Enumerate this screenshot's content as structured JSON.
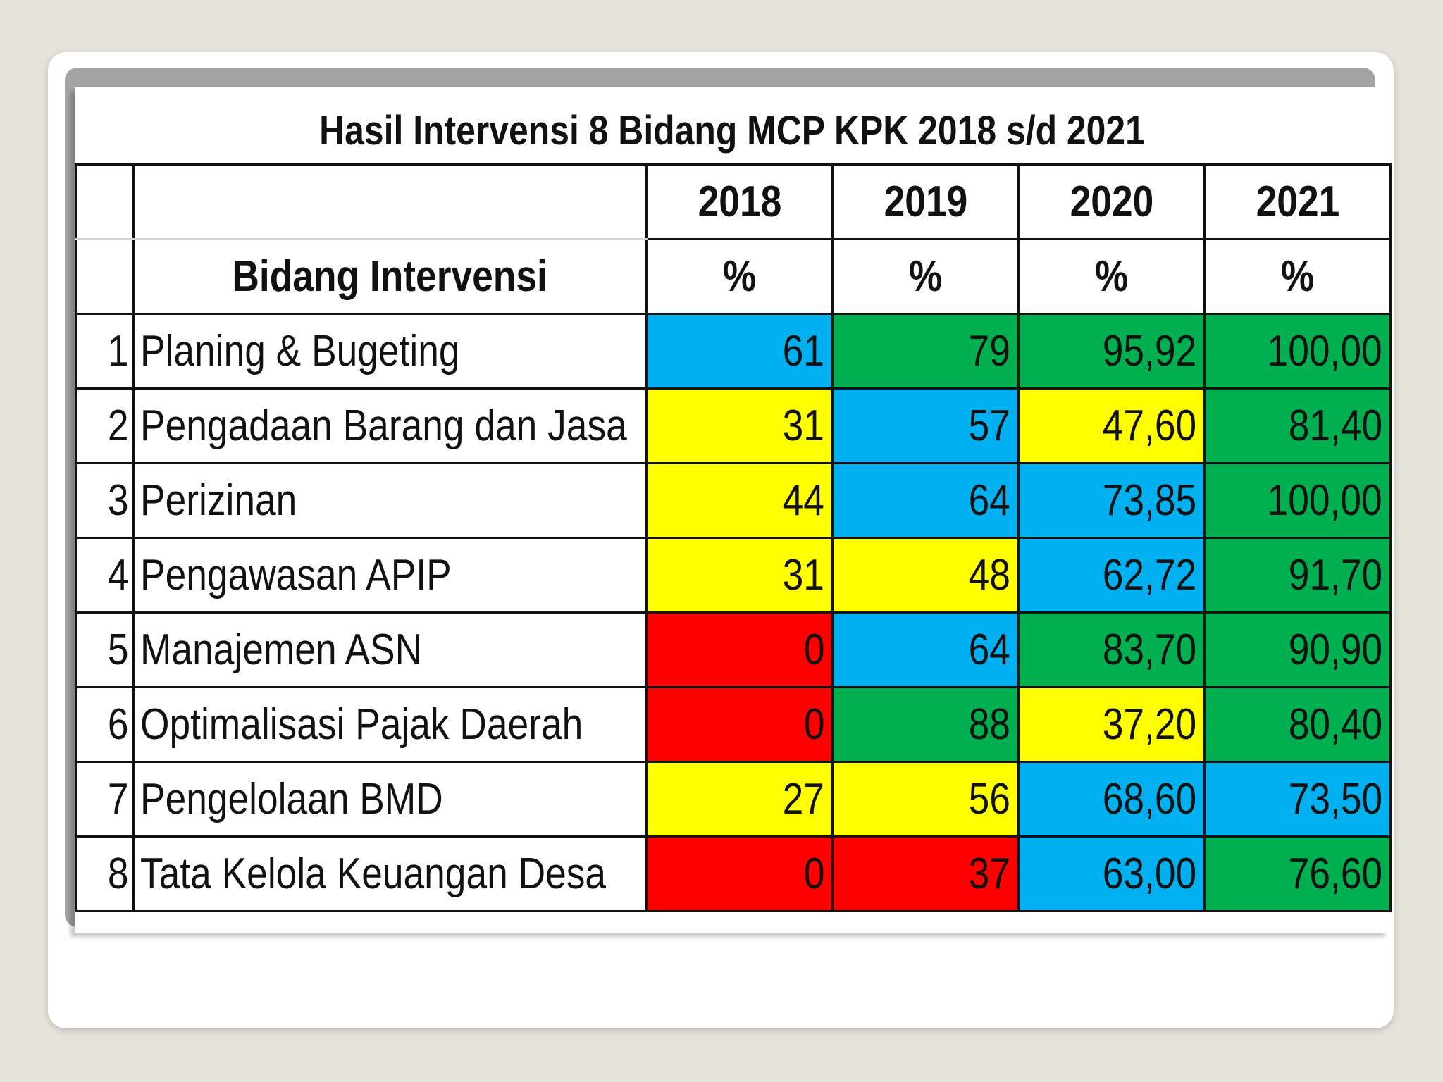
{
  "title": "Hasil Intervensi 8 Bidang MCP KPK 2018 s/d 2021",
  "header": {
    "field_label": "Bidang Intervensi",
    "years": [
      "2018",
      "2019",
      "2020",
      "2021"
    ],
    "unit": "%"
  },
  "colors": {
    "blue": "#00b0f0",
    "green": "#00b050",
    "yellow": "#ffff00",
    "red": "#ff0000"
  },
  "rows": [
    {
      "no": "1",
      "name": "Planing & Bugeting",
      "values": [
        "61",
        "79",
        "95,92",
        "100,00"
      ],
      "colors": [
        "blue",
        "green",
        "green",
        "green"
      ]
    },
    {
      "no": "2",
      "name": "Pengadaan Barang dan Jasa",
      "values": [
        "31",
        "57",
        "47,60",
        "81,40"
      ],
      "colors": [
        "yellow",
        "blue",
        "yellow",
        "green"
      ]
    },
    {
      "no": "3",
      "name": "Perizinan",
      "values": [
        "44",
        "64",
        "73,85",
        "100,00"
      ],
      "colors": [
        "yellow",
        "blue",
        "blue",
        "green"
      ]
    },
    {
      "no": "4",
      "name": "Pengawasan APIP",
      "values": [
        "31",
        "48",
        "62,72",
        "91,70"
      ],
      "colors": [
        "yellow",
        "yellow",
        "blue",
        "green"
      ]
    },
    {
      "no": "5",
      "name": "Manajemen ASN",
      "values": [
        "0",
        "64",
        "83,70",
        "90,90"
      ],
      "colors": [
        "red",
        "blue",
        "green",
        "green"
      ]
    },
    {
      "no": "6",
      "name": "Optimalisasi Pajak Daerah",
      "values": [
        "0",
        "88",
        "37,20",
        "80,40"
      ],
      "colors": [
        "red",
        "green",
        "yellow",
        "green"
      ]
    },
    {
      "no": "7",
      "name": "Pengelolaan BMD",
      "values": [
        "27",
        "56",
        "68,60",
        "73,50"
      ],
      "colors": [
        "yellow",
        "yellow",
        "blue",
        "blue"
      ]
    },
    {
      "no": "8",
      "name": "Tata Kelola Keuangan Desa",
      "values": [
        "0",
        "37",
        "63,00",
        "76,60"
      ],
      "colors": [
        "red",
        "red",
        "blue",
        "green"
      ]
    }
  ]
}
